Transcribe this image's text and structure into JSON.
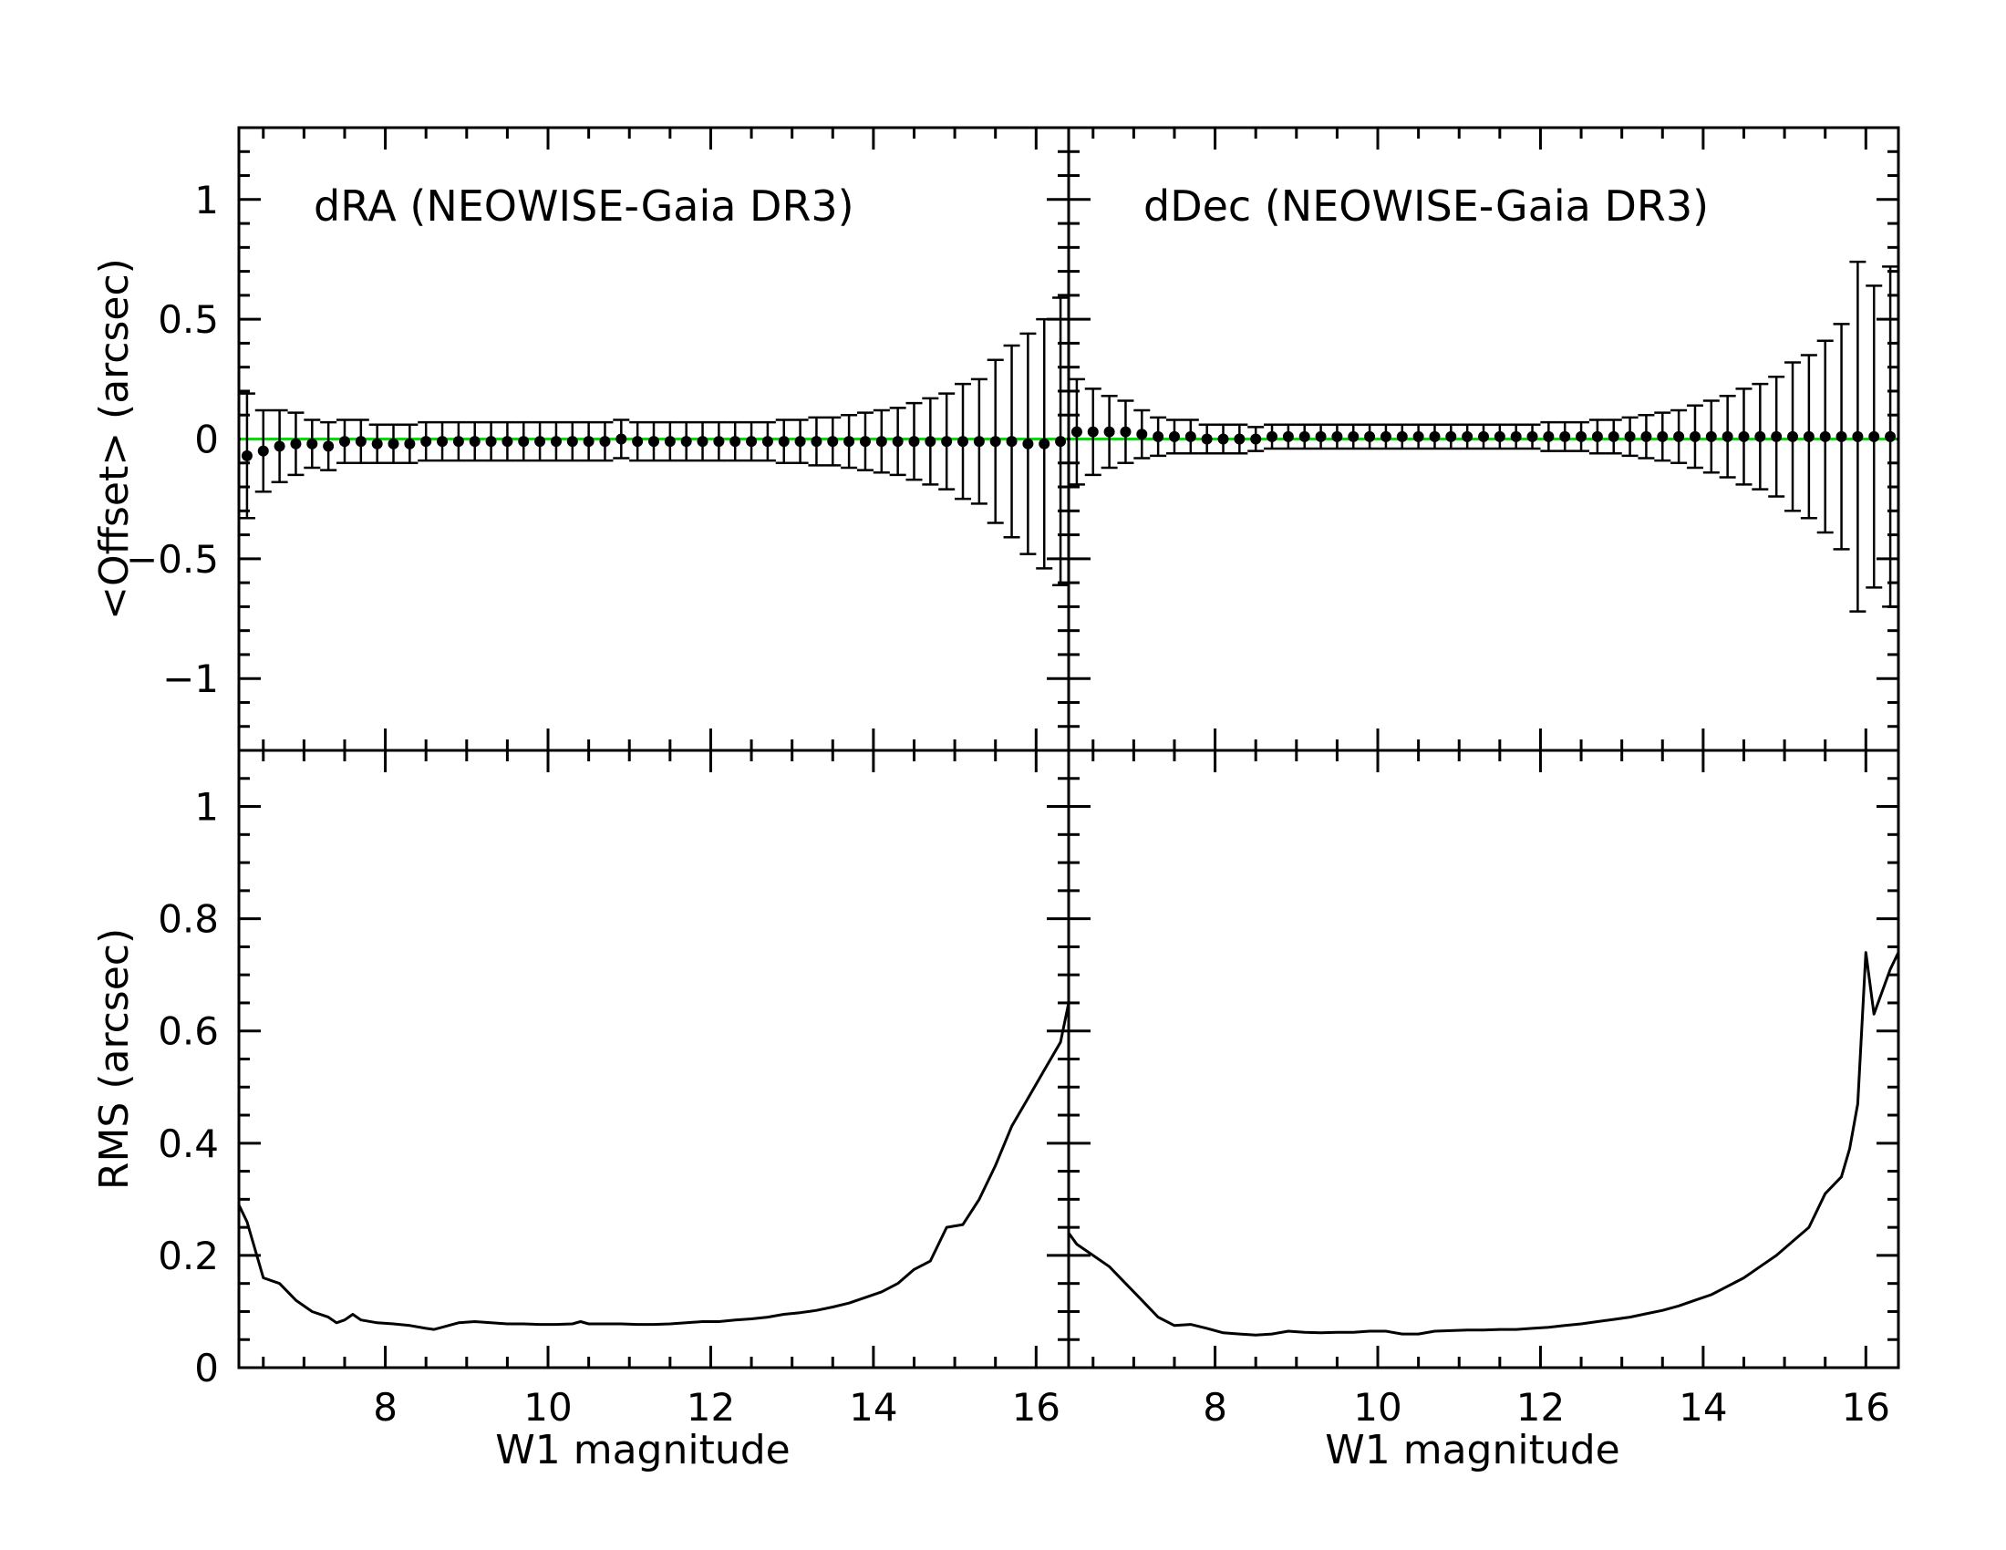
{
  "chart_data": [
    {
      "type": "scatter",
      "panel": "top-left",
      "title": "dRA (NEOWISE-Gaia DR3)",
      "ylabel": "<Offset> (arcsec)",
      "xlabel": "",
      "xlim": [
        6.2,
        16.4
      ],
      "ylim": [
        -1.3,
        1.3
      ],
      "yticks": [
        "1",
        "0.5",
        "0",
        "−0.5",
        "−1"
      ],
      "reference_line": {
        "y": 0,
        "color": "#00e000"
      },
      "series": [
        {
          "x": [
            6.3,
            6.5,
            6.7,
            6.9,
            7.1,
            7.3,
            7.5,
            7.7,
            7.9,
            8.1,
            8.3,
            8.5,
            8.7,
            8.9,
            9.1,
            9.3,
            9.5,
            9.7,
            9.9,
            10.1,
            10.3,
            10.5,
            10.7,
            10.9,
            11.1,
            11.3,
            11.5,
            11.7,
            11.9,
            12.1,
            12.3,
            12.5,
            12.7,
            12.9,
            13.1,
            13.3,
            13.5,
            13.7,
            13.9,
            14.1,
            14.3,
            14.5,
            14.7,
            14.9,
            15.1,
            15.3,
            15.5,
            15.7,
            15.9,
            16.1,
            16.3
          ],
          "y": [
            -0.07,
            -0.05,
            -0.03,
            -0.02,
            -0.02,
            -0.03,
            -0.01,
            -0.01,
            -0.02,
            -0.02,
            -0.02,
            -0.01,
            -0.01,
            -0.01,
            -0.01,
            -0.01,
            -0.01,
            -0.01,
            -0.01,
            -0.01,
            -0.01,
            -0.01,
            -0.01,
            0,
            -0.01,
            -0.01,
            -0.01,
            -0.01,
            -0.01,
            -0.01,
            -0.01,
            -0.01,
            -0.01,
            -0.01,
            -0.01,
            -0.01,
            -0.01,
            -0.01,
            -0.01,
            -0.01,
            -0.01,
            -0.01,
            -0.01,
            -0.01,
            -0.01,
            -0.01,
            -0.01,
            -0.01,
            -0.02,
            -0.02,
            -0.01
          ],
          "err": [
            0.26,
            0.17,
            0.15,
            0.13,
            0.1,
            0.1,
            0.09,
            0.09,
            0.08,
            0.08,
            0.08,
            0.08,
            0.08,
            0.08,
            0.08,
            0.08,
            0.08,
            0.08,
            0.08,
            0.08,
            0.08,
            0.08,
            0.08,
            0.08,
            0.08,
            0.08,
            0.08,
            0.08,
            0.08,
            0.08,
            0.08,
            0.08,
            0.08,
            0.09,
            0.09,
            0.1,
            0.1,
            0.11,
            0.12,
            0.13,
            0.14,
            0.16,
            0.18,
            0.2,
            0.24,
            0.26,
            0.34,
            0.4,
            0.46,
            0.52,
            0.6
          ],
          "color": "#000000"
        }
      ]
    },
    {
      "type": "scatter",
      "panel": "top-right",
      "title": "dDec (NEOWISE-Gaia DR3)",
      "ylabel": "",
      "xlabel": "",
      "xlim": [
        6.2,
        16.4
      ],
      "ylim": [
        -1.3,
        1.3
      ],
      "reference_line": {
        "y": 0,
        "color": "#00e000"
      },
      "series": [
        {
          "x": [
            6.3,
            6.5,
            6.7,
            6.9,
            7.1,
            7.3,
            7.5,
            7.7,
            7.9,
            8.1,
            8.3,
            8.5,
            8.7,
            8.9,
            9.1,
            9.3,
            9.5,
            9.7,
            9.9,
            10.1,
            10.3,
            10.5,
            10.7,
            10.9,
            11.1,
            11.3,
            11.5,
            11.7,
            11.9,
            12.1,
            12.3,
            12.5,
            12.7,
            12.9,
            13.1,
            13.3,
            13.5,
            13.7,
            13.9,
            14.1,
            14.3,
            14.5,
            14.7,
            14.9,
            15.1,
            15.3,
            15.5,
            15.7,
            15.9,
            16.1,
            16.3
          ],
          "y": [
            0.03,
            0.03,
            0.03,
            0.03,
            0.02,
            0.01,
            0.01,
            0.01,
            0,
            0,
            0,
            0,
            0.01,
            0.01,
            0.01,
            0.01,
            0.01,
            0.01,
            0.01,
            0.01,
            0.01,
            0.01,
            0.01,
            0.01,
            0.01,
            0.01,
            0.01,
            0.01,
            0.01,
            0.01,
            0.01,
            0.01,
            0.01,
            0.01,
            0.01,
            0.01,
            0.01,
            0.01,
            0.01,
            0.01,
            0.01,
            0.01,
            0.01,
            0.01,
            0.01,
            0.01,
            0.01,
            0.01,
            0.01,
            0.01,
            0.01
          ],
          "err": [
            0.22,
            0.18,
            0.15,
            0.13,
            0.1,
            0.08,
            0.07,
            0.07,
            0.06,
            0.06,
            0.06,
            0.05,
            0.05,
            0.05,
            0.05,
            0.05,
            0.05,
            0.05,
            0.05,
            0.05,
            0.05,
            0.05,
            0.05,
            0.05,
            0.05,
            0.05,
            0.05,
            0.05,
            0.05,
            0.06,
            0.06,
            0.06,
            0.07,
            0.07,
            0.08,
            0.09,
            0.1,
            0.11,
            0.13,
            0.15,
            0.17,
            0.2,
            0.22,
            0.25,
            0.31,
            0.34,
            0.4,
            0.47,
            0.73,
            0.63,
            0.71
          ],
          "color": "#000000"
        }
      ]
    },
    {
      "type": "line",
      "panel": "bottom-left",
      "title": "",
      "ylabel": "RMS (arcsec)",
      "xlabel": "W1 magnitude",
      "xlim": [
        6.2,
        16.4
      ],
      "ylim": [
        0,
        1.1
      ],
      "xticks": [
        "8",
        "10",
        "12",
        "14",
        "16"
      ],
      "yticks": [
        "1",
        "0.8",
        "0.6",
        "0.4",
        "0.2",
        "0"
      ],
      "series": [
        {
          "x": [
            6.2,
            6.3,
            6.5,
            6.7,
            6.9,
            7.1,
            7.3,
            7.4,
            7.5,
            7.6,
            7.7,
            7.9,
            8.1,
            8.3,
            8.5,
            8.6,
            8.7,
            8.9,
            9.1,
            9.3,
            9.5,
            9.7,
            9.9,
            10.1,
            10.3,
            10.4,
            10.5,
            10.7,
            10.9,
            11.1,
            11.3,
            11.5,
            11.7,
            11.9,
            12.1,
            12.3,
            12.5,
            12.7,
            12.9,
            13.1,
            13.3,
            13.5,
            13.7,
            13.9,
            14.1,
            14.3,
            14.5,
            14.7,
            14.9,
            15.1,
            15.3,
            15.5,
            15.7,
            15.9,
            16.1,
            16.3,
            16.4
          ],
          "y": [
            0.29,
            0.26,
            0.16,
            0.15,
            0.12,
            0.1,
            0.09,
            0.08,
            0.085,
            0.095,
            0.085,
            0.08,
            0.078,
            0.075,
            0.07,
            0.068,
            0.072,
            0.08,
            0.082,
            0.08,
            0.078,
            0.078,
            0.077,
            0.077,
            0.078,
            0.082,
            0.078,
            0.078,
            0.078,
            0.077,
            0.077,
            0.078,
            0.08,
            0.082,
            0.082,
            0.085,
            0.087,
            0.09,
            0.095,
            0.098,
            0.102,
            0.108,
            0.115,
            0.125,
            0.135,
            0.15,
            0.175,
            0.19,
            0.25,
            0.255,
            0.3,
            0.36,
            0.43,
            0.48,
            0.53,
            0.58,
            0.65
          ],
          "color": "#000000"
        }
      ]
    },
    {
      "type": "line",
      "panel": "bottom-right",
      "title": "",
      "ylabel": "",
      "xlabel": "W1 magnitude",
      "xlim": [
        6.2,
        16.4
      ],
      "ylim": [
        0,
        1.1
      ],
      "xticks": [
        "8",
        "10",
        "12",
        "14",
        "16"
      ],
      "series": [
        {
          "x": [
            6.2,
            6.3,
            6.5,
            6.7,
            6.9,
            7.1,
            7.3,
            7.5,
            7.7,
            7.9,
            8.1,
            8.3,
            8.5,
            8.7,
            8.9,
            9.1,
            9.3,
            9.5,
            9.7,
            9.9,
            10.1,
            10.3,
            10.5,
            10.7,
            10.9,
            11.1,
            11.3,
            11.5,
            11.7,
            11.9,
            12.1,
            12.3,
            12.5,
            12.7,
            12.9,
            13.1,
            13.3,
            13.5,
            13.7,
            13.9,
            14.1,
            14.3,
            14.5,
            14.7,
            14.9,
            15.1,
            15.3,
            15.5,
            15.7,
            15.8,
            15.9,
            16.0,
            16.1,
            16.3,
            16.4
          ],
          "y": [
            0.24,
            0.22,
            0.2,
            0.18,
            0.15,
            0.12,
            0.09,
            0.075,
            0.077,
            0.07,
            0.062,
            0.06,
            0.058,
            0.06,
            0.065,
            0.063,
            0.062,
            0.063,
            0.063,
            0.065,
            0.065,
            0.06,
            0.06,
            0.065,
            0.066,
            0.067,
            0.067,
            0.068,
            0.068,
            0.07,
            0.072,
            0.075,
            0.078,
            0.082,
            0.086,
            0.09,
            0.096,
            0.102,
            0.11,
            0.12,
            0.13,
            0.145,
            0.16,
            0.18,
            0.2,
            0.225,
            0.25,
            0.31,
            0.34,
            0.39,
            0.47,
            0.74,
            0.63,
            0.71,
            0.74
          ],
          "color": "#000000"
        }
      ]
    }
  ]
}
